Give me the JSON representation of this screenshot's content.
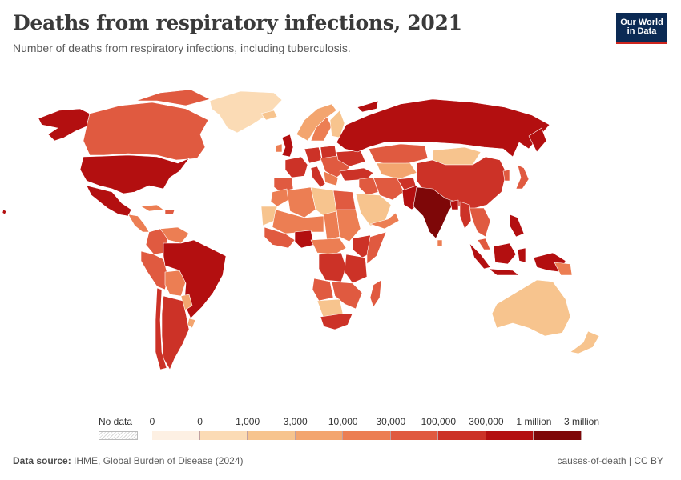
{
  "header": {
    "title": "Deaths from respiratory infections, 2021",
    "subtitle": "Number of deaths from respiratory infections, including tuberculosis."
  },
  "logo": {
    "text": "Our World\nin Data",
    "background": "#0b2a54",
    "accent": "#ce261e"
  },
  "legend": {
    "no_data_label": "No data",
    "bins": [
      {
        "label_start": "0",
        "color": "#fdf0e3"
      },
      {
        "label_start": "0",
        "color": "#fbdbb5"
      },
      {
        "label_start": "1,000",
        "color": "#f7c48e"
      },
      {
        "label_start": "3,000",
        "color": "#f3a56f"
      },
      {
        "label_start": "10,000",
        "color": "#ec7e53"
      },
      {
        "label_start": "30,000",
        "color": "#e05a40"
      },
      {
        "label_start": "100,000",
        "color": "#cc3227"
      },
      {
        "label_start": "300,000",
        "color": "#b30f10"
      },
      {
        "label_start": "1 million",
        "color": "#7e0708"
      }
    ],
    "last_label": "3 million"
  },
  "footer": {
    "source_label": "Data source:",
    "source_text": "IHME, Global Burden of Disease (2024)",
    "right_text": "causes-of-death | CC BY"
  }
}
